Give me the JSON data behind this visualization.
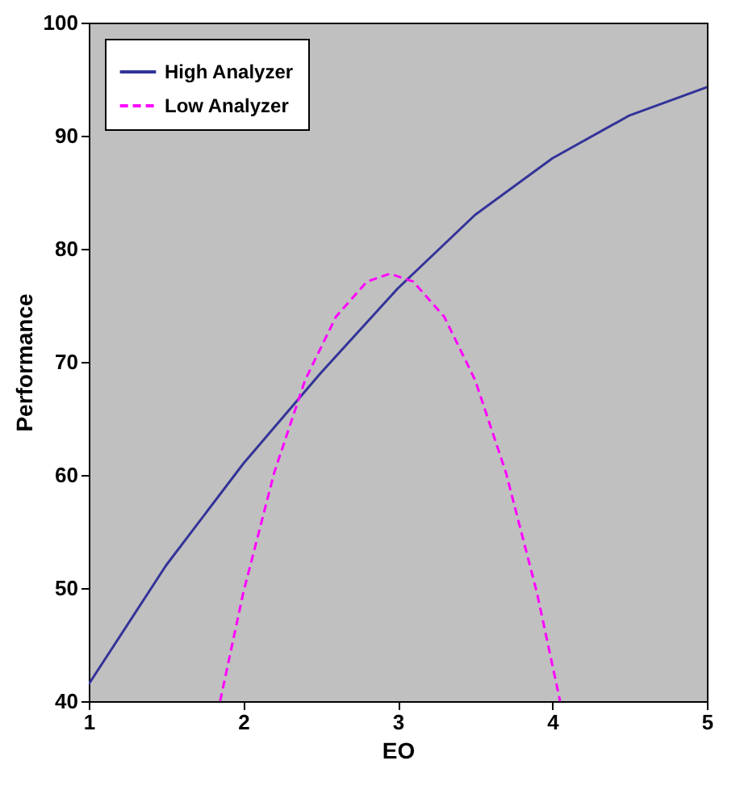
{
  "chart_data": {
    "type": "line",
    "xlabel": "EO",
    "ylabel": "Performance",
    "xlim": [
      1,
      5
    ],
    "xticks": [
      1,
      2,
      3,
      4,
      5
    ],
    "ylim": [
      40,
      100
    ],
    "yticks": [
      40,
      50,
      60,
      70,
      80,
      90,
      100
    ],
    "grid": false,
    "legend": "top left",
    "marker": "none",
    "series": [
      {
        "name": "High Analyzer",
        "color": "#333399",
        "line_style": "solid",
        "x": [
          1,
          1.5,
          2,
          2.5,
          3,
          3.5,
          4,
          4.5,
          5
        ],
        "values": [
          41.5,
          52,
          61,
          69,
          76.5,
          83,
          88,
          91.8,
          94.3
        ]
      },
      {
        "name": "Low Analyzer",
        "color": "#ff00ff",
        "line_style": "dashed",
        "x": [
          1.85,
          2,
          2.2,
          2.4,
          2.6,
          2.8,
          2.95,
          3.1,
          3.3,
          3.5,
          3.7,
          3.9,
          4.05
        ],
        "values": [
          40,
          49.6,
          60.2,
          68.4,
          74,
          77.1,
          77.8,
          77.1,
          74,
          68.4,
          60.2,
          49.6,
          40
        ]
      }
    ]
  }
}
